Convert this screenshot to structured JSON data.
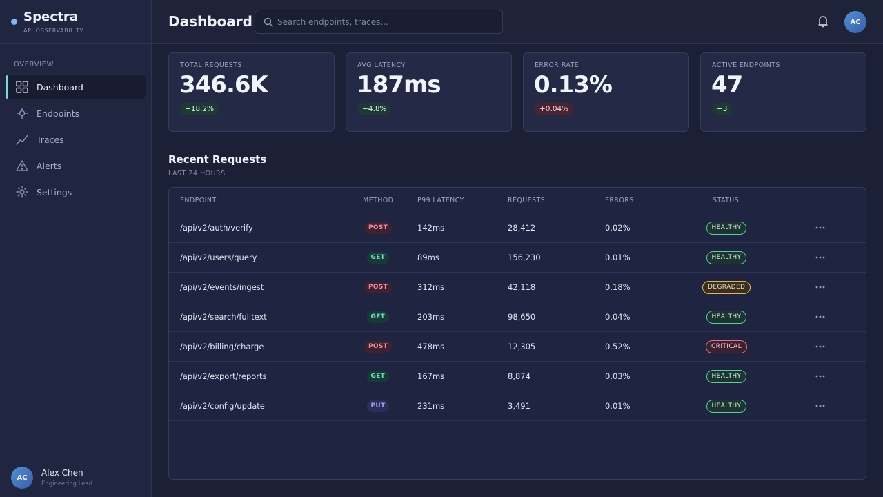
{
  "brand": {
    "name": "Spectra",
    "subtitle": "API OBSERVABILITY",
    "dot_color": "#7fb8f0"
  },
  "sidebar": {
    "section": "OVERVIEW",
    "items": [
      {
        "label": "Dashboard",
        "icon": "grid-icon",
        "active": true
      },
      {
        "label": "Endpoints",
        "icon": "crosshair-icon",
        "active": false
      },
      {
        "label": "Traces",
        "icon": "trend-line-icon",
        "active": false
      },
      {
        "label": "Alerts",
        "icon": "warning-icon",
        "active": false
      },
      {
        "label": "Settings",
        "icon": "gear-icon",
        "active": false
      }
    ]
  },
  "user": {
    "initials": "AC",
    "name": "Alex Chen",
    "role": "Engineering Lead"
  },
  "header": {
    "title": "Dashboard",
    "search_placeholder": "Search endpoints, traces...",
    "search_value": "",
    "avatar_initials": "AC"
  },
  "stats": [
    {
      "label": "TOTAL REQUESTS",
      "value": "346.6K",
      "delta": "+18.2%",
      "tone": "up"
    },
    {
      "label": "AVG LATENCY",
      "value": "187ms",
      "delta": "−4.8%",
      "tone": "up"
    },
    {
      "label": "ERROR RATE",
      "value": "0.13%",
      "delta": "+0.04%",
      "tone": "bad"
    },
    {
      "label": "ACTIVE ENDPOINTS",
      "value": "47",
      "delta": "+3",
      "tone": "up"
    }
  ],
  "recent": {
    "title": "Recent Requests",
    "subtitle": "LAST 24 HOURS",
    "columns": [
      "ENDPOINT",
      "METHOD",
      "P99 LATENCY",
      "REQUESTS",
      "ERRORS",
      "STATUS"
    ],
    "rows": [
      {
        "endpoint": "/api/v2/auth/verify",
        "method": "POST",
        "latency": "142ms",
        "requests": "28,412",
        "errors": "0.02%",
        "status": "HEALTHY"
      },
      {
        "endpoint": "/api/v2/users/query",
        "method": "GET",
        "latency": "89ms",
        "requests": "156,230",
        "errors": "0.01%",
        "status": "HEALTHY"
      },
      {
        "endpoint": "/api/v2/events/ingest",
        "method": "POST",
        "latency": "312ms",
        "requests": "42,118",
        "errors": "0.18%",
        "status": "DEGRADED"
      },
      {
        "endpoint": "/api/v2/search/fulltext",
        "method": "GET",
        "latency": "203ms",
        "requests": "98,650",
        "errors": "0.04%",
        "status": "HEALTHY"
      },
      {
        "endpoint": "/api/v2/billing/charge",
        "method": "POST",
        "latency": "478ms",
        "requests": "12,305",
        "errors": "0.52%",
        "status": "CRITICAL"
      },
      {
        "endpoint": "/api/v2/export/reports",
        "method": "GET",
        "latency": "167ms",
        "requests": "8,874",
        "errors": "0.03%",
        "status": "HEALTHY"
      },
      {
        "endpoint": "/api/v2/config/update",
        "method": "PUT",
        "latency": "231ms",
        "requests": "3,491",
        "errors": "0.01%",
        "status": "HEALTHY"
      }
    ]
  },
  "colors": {
    "healthy": "#4fd39a",
    "degraded": "#e9b44c",
    "critical": "#ec6f85",
    "accent": "#7fd6e0"
  }
}
